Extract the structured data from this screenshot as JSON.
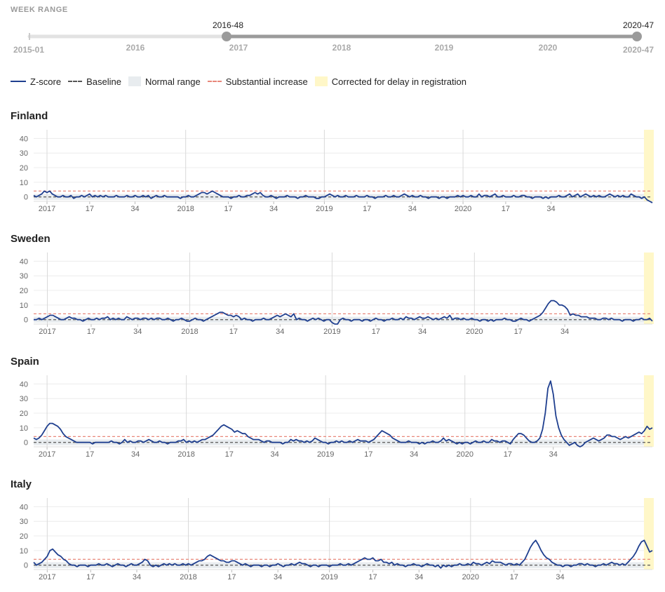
{
  "week_range": {
    "label": "WEEK RANGE",
    "min_label": "2015-01",
    "max_label": "2020-47",
    "selected_start": "2016-48",
    "selected_end": "2020-47",
    "year_labels": [
      "2016",
      "2017",
      "2018",
      "2019",
      "2020"
    ]
  },
  "legend": {
    "zscore": "Z-score",
    "baseline": "Baseline",
    "normal_range": "Normal range",
    "substantial": "Substantial increase",
    "corrected": "Corrected for delay in registration"
  },
  "colors": {
    "zscore": "#1f3f8f",
    "baseline": "#555555",
    "normal_range": "#e8ecef",
    "substantial": "#e8877a",
    "corrected": "#fff7c8"
  },
  "chart_data": [
    {
      "type": "line",
      "title": "Finland",
      "x_ticks": [
        "2017",
        "17",
        "34",
        "2018",
        "17",
        "34",
        "2019",
        "17",
        "34",
        "2020",
        "17",
        "34"
      ],
      "y_ticks": [
        0,
        10,
        20,
        30,
        40
      ],
      "ylim": [
        -3,
        44
      ],
      "baseline": 0,
      "normal_range": [
        -2,
        2
      ],
      "substantial_increase": 4,
      "x": "weeks from 2016-48 to 2020-47",
      "series": [
        {
          "values": [
            1,
            0,
            1,
            2,
            4,
            3,
            4,
            2,
            1,
            0,
            0,
            1,
            0,
            0,
            1,
            -1,
            0,
            0,
            1,
            0,
            1,
            2,
            0,
            1,
            0,
            1,
            0,
            1,
            0,
            0,
            0,
            1,
            0,
            0,
            0,
            1,
            0,
            0,
            1,
            0,
            0,
            1,
            0,
            1,
            -1,
            0,
            1,
            0,
            0,
            1,
            0,
            0,
            0,
            0,
            0,
            -1,
            0,
            0,
            1,
            0,
            0,
            1,
            2,
            3,
            3,
            2,
            3,
            4,
            3,
            2,
            1,
            0,
            0,
            0,
            -1,
            0,
            0,
            1,
            0,
            0,
            1,
            1,
            2,
            3,
            2,
            3,
            1,
            0,
            0,
            1,
            0,
            -1,
            0,
            0,
            0,
            1,
            0,
            0,
            0,
            -1,
            0,
            0,
            1,
            0,
            0,
            0,
            -1,
            -1,
            0,
            0,
            1,
            2,
            1,
            0,
            1,
            0,
            0,
            1,
            0,
            0,
            0,
            1,
            0,
            0,
            0,
            1,
            0,
            0,
            -1,
            0,
            0,
            0,
            1,
            0,
            0,
            1,
            0,
            0,
            1,
            2,
            1,
            0,
            1,
            0,
            0,
            1,
            0,
            0,
            -1,
            0,
            0,
            0,
            -1,
            0,
            0,
            -1,
            0,
            0,
            0,
            1,
            0,
            1,
            0,
            0,
            1,
            0,
            0,
            2,
            0,
            1,
            1,
            0,
            1,
            2,
            0,
            0,
            1,
            0,
            0,
            0,
            1,
            0,
            0,
            1,
            1,
            0,
            0,
            -1,
            0,
            0,
            0,
            -1,
            0,
            -1,
            0,
            0,
            0,
            1,
            0,
            0,
            1,
            2,
            0,
            1,
            2,
            0,
            1,
            2,
            1,
            0,
            1,
            0,
            1,
            0,
            0,
            1,
            2,
            1,
            0,
            1,
            0,
            1,
            0,
            0,
            2,
            1,
            0,
            0,
            -1,
            0,
            -2,
            -3,
            -4
          ]
        }
      ]
    },
    {
      "type": "line",
      "title": "Sweden",
      "x_ticks": [
        "2017",
        "17",
        "34",
        "2018",
        "17",
        "34",
        "2019",
        "17",
        "34",
        "2020",
        "17",
        "34"
      ],
      "y_ticks": [
        0,
        10,
        20,
        30,
        40
      ],
      "ylim": [
        -3,
        44
      ],
      "baseline": 0,
      "normal_range": [
        -2,
        2
      ],
      "substantial_increase": 4,
      "x": "weeks from 2016-48 to 2020-47",
      "series": [
        {
          "values": [
            0,
            0,
            1,
            0,
            1,
            2,
            3,
            3,
            2,
            1,
            0,
            0,
            1,
            2,
            1,
            1,
            0,
            0,
            -1,
            0,
            1,
            0,
            0,
            1,
            0,
            1,
            1,
            2,
            0,
            1,
            0,
            1,
            0,
            0,
            2,
            1,
            0,
            1,
            1,
            0,
            1,
            1,
            0,
            1,
            0,
            1,
            1,
            0,
            0,
            1,
            0,
            -1,
            0,
            0,
            1,
            0,
            -1,
            -1,
            0,
            1,
            0,
            0,
            -1,
            0,
            1,
            2,
            3,
            4,
            5,
            5,
            4,
            3,
            3,
            2,
            3,
            2,
            0,
            1,
            0,
            0,
            -1,
            0,
            0,
            0,
            1,
            0,
            0,
            1,
            2,
            3,
            2,
            3,
            4,
            3,
            2,
            4,
            0,
            1,
            0,
            0,
            -1,
            0,
            1,
            0,
            1,
            0,
            -1,
            0,
            0,
            -2,
            -3,
            -3,
            0,
            1,
            0,
            0,
            -1,
            0,
            0,
            0,
            -1,
            0,
            0,
            -1,
            0,
            1,
            0,
            0,
            -1,
            0,
            0,
            1,
            0,
            0,
            1,
            0,
            2,
            1,
            1,
            0,
            1,
            2,
            1,
            1,
            2,
            1,
            0,
            1,
            0,
            1,
            2,
            1,
            3,
            0,
            1,
            1,
            0,
            1,
            0,
            0,
            1,
            0,
            0,
            -1,
            0,
            0,
            -1,
            0,
            -1,
            0,
            0,
            0,
            1,
            0,
            0,
            -1,
            -1,
            0,
            1,
            0,
            0,
            -1,
            0,
            1,
            2,
            3,
            5,
            8,
            11,
            13,
            13,
            12,
            10,
            10,
            9,
            7,
            3,
            4,
            3,
            3,
            2,
            2,
            2,
            1,
            1,
            1,
            0,
            0,
            1,
            1,
            0,
            1,
            0,
            0,
            0,
            -1,
            0,
            0,
            0,
            -1,
            0,
            0,
            1,
            0,
            0,
            1,
            -1
          ]
        }
      ]
    },
    {
      "type": "line",
      "title": "Spain",
      "x_ticks": [
        "2017",
        "17",
        "34",
        "2018",
        "17",
        "34",
        "2019",
        "17",
        "34",
        "2020",
        "17",
        "34"
      ],
      "y_ticks": [
        0,
        10,
        20,
        30,
        40
      ],
      "ylim": [
        -3,
        44
      ],
      "baseline": 0,
      "normal_range": [
        -2,
        2
      ],
      "substantial_increase": 4,
      "x": "weeks from 2016-48 to 2020-47",
      "series": [
        {
          "values": [
            3,
            2,
            3,
            5,
            8,
            11,
            13,
            13,
            12,
            11,
            9,
            6,
            4,
            3,
            2,
            1,
            0,
            0,
            0,
            0,
            0,
            0,
            -1,
            0,
            0,
            0,
            0,
            0,
            0,
            1,
            0,
            0,
            -1,
            0,
            2,
            0,
            1,
            0,
            0,
            1,
            1,
            0,
            1,
            2,
            1,
            0,
            0,
            1,
            0,
            0,
            -1,
            0,
            0,
            0,
            1,
            1,
            2,
            0,
            1,
            0,
            1,
            0,
            1,
            2,
            2,
            3,
            4,
            5,
            7,
            9,
            11,
            12,
            11,
            10,
            9,
            7,
            8,
            7,
            6,
            6,
            4,
            3,
            2,
            2,
            2,
            1,
            0,
            1,
            1,
            0,
            0,
            0,
            0,
            -1,
            0,
            0,
            2,
            1,
            2,
            1,
            1,
            0,
            1,
            0,
            1,
            3,
            2,
            1,
            0,
            0,
            -1,
            0,
            0,
            1,
            0,
            1,
            0,
            0,
            1,
            0,
            1,
            2,
            1,
            1,
            1,
            0,
            1,
            2,
            4,
            6,
            8,
            7,
            6,
            5,
            3,
            2,
            1,
            0,
            0,
            0,
            1,
            0,
            0,
            0,
            -1,
            0,
            -1,
            0,
            0,
            1,
            0,
            0,
            1,
            3,
            1,
            2,
            1,
            0,
            -1,
            0,
            -1,
            0,
            0,
            -1,
            0,
            1,
            0,
            0,
            1,
            0,
            0,
            2,
            1,
            1,
            0,
            1,
            1,
            0,
            -1,
            2,
            4,
            6,
            6,
            5,
            3,
            1,
            0,
            0,
            1,
            3,
            9,
            20,
            37,
            42,
            33,
            18,
            10,
            5,
            2,
            0,
            -2,
            -1,
            0,
            -2,
            -3,
            -2,
            0,
            1,
            2,
            3,
            2,
            1,
            2,
            3,
            5,
            5,
            4,
            4,
            3,
            2,
            3,
            4,
            3,
            4,
            5,
            6,
            7,
            6,
            8,
            11,
            9,
            10
          ]
        }
      ]
    },
    {
      "type": "line",
      "title": "Italy",
      "x_ticks": [
        "2017",
        "17",
        "34",
        "2018",
        "17",
        "34",
        "2019",
        "17",
        "34",
        "2020",
        "17",
        "34"
      ],
      "y_ticks": [
        0,
        10,
        20,
        30,
        40
      ],
      "ylim": [
        -3,
        44
      ],
      "baseline": 0,
      "normal_range": [
        -2,
        2
      ],
      "substantial_increase": 4,
      "x": "weeks from 2016-48 to 2020-47",
      "series": [
        {
          "values": [
            2,
            0,
            1,
            2,
            4,
            6,
            10,
            11,
            9,
            7,
            6,
            4,
            3,
            1,
            0,
            0,
            -1,
            0,
            0,
            0,
            -1,
            0,
            0,
            0,
            1,
            0,
            0,
            1,
            0,
            -1,
            0,
            1,
            0,
            0,
            -1,
            0,
            1,
            0,
            0,
            1,
            2,
            4,
            3,
            0,
            -1,
            0,
            -1,
            0,
            1,
            0,
            1,
            0,
            1,
            0,
            0,
            1,
            0,
            1,
            0,
            1,
            2,
            3,
            3,
            4,
            6,
            7,
            6,
            5,
            4,
            3,
            3,
            2,
            2,
            3,
            3,
            2,
            1,
            0,
            1,
            0,
            -1,
            0,
            0,
            0,
            -1,
            0,
            0,
            -1,
            0,
            0,
            1,
            0,
            -1,
            0,
            0,
            1,
            0,
            1,
            2,
            1,
            1,
            0,
            -1,
            0,
            0,
            -1,
            0,
            0,
            0,
            -1,
            0,
            0,
            0,
            1,
            0,
            0,
            1,
            0,
            1,
            2,
            3,
            4,
            5,
            4,
            4,
            5,
            3,
            3,
            4,
            2,
            2,
            1,
            2,
            0,
            1,
            0,
            0,
            -1,
            0,
            0,
            1,
            0,
            0,
            -1,
            0,
            1,
            0,
            0,
            -1,
            0,
            -2,
            0,
            -1,
            0,
            -1,
            0,
            0,
            1,
            0,
            0,
            1,
            0,
            2,
            1,
            1,
            0,
            1,
            2,
            1,
            3,
            2,
            2,
            2,
            1,
            0,
            1,
            1,
            0,
            1,
            0,
            2,
            4,
            8,
            12,
            15,
            17,
            14,
            10,
            7,
            5,
            4,
            2,
            1,
            0,
            0,
            -1,
            0,
            0,
            -1,
            0,
            0,
            1,
            1,
            0,
            1,
            0,
            0,
            -1,
            0,
            0,
            1,
            0,
            1,
            2,
            1,
            1,
            0,
            1,
            0,
            2,
            4,
            6,
            9,
            13,
            16,
            17,
            13,
            9,
            10
          ]
        }
      ]
    }
  ]
}
